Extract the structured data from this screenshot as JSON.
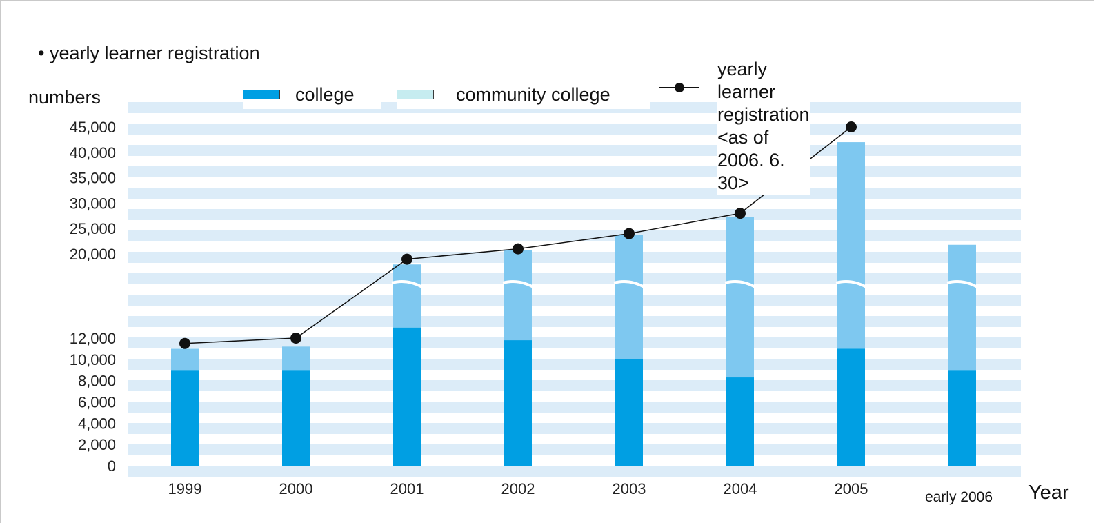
{
  "subtitle": "• yearly learner registration",
  "chart_data": {
    "type": "bar",
    "stacked": true,
    "broken_axis": true,
    "ylabel": "numbers",
    "xlabel": "Year",
    "categories": [
      "1999",
      "2000",
      "2001",
      "2002",
      "2003",
      "2004",
      "2005",
      "early 2006"
    ],
    "y_ticks": [
      "45,000",
      "40,000",
      "35,000",
      "30,000",
      "25,000",
      "20,000",
      "12,000",
      "10,000",
      "8,000",
      "6,000",
      "4,000",
      "2,000",
      "0"
    ],
    "series": [
      {
        "name": "college",
        "kind": "bar",
        "color": "#009fe3",
        "values": [
          9000,
          9000,
          13000,
          11800,
          10000,
          8300,
          11000,
          9000
        ]
      },
      {
        "name": "community college",
        "kind": "bar",
        "color": "#7ec8f0",
        "values": [
          2000,
          2200,
          6000,
          9000,
          13700,
          19000,
          31000,
          12800
        ]
      },
      {
        "name": "yearly learner registration",
        "kind": "line",
        "color": "#111111",
        "values": [
          11500,
          12000,
          19500,
          21000,
          24000,
          28000,
          45000,
          null
        ]
      }
    ],
    "legend": [
      {
        "label": "college",
        "swatch": "#009fe3"
      },
      {
        "label": "community college",
        "swatch": "#c6ecf0"
      },
      {
        "label": "yearly learner registration",
        "label2": "<as of 2006. 6. 30>",
        "swatch": "line"
      }
    ]
  }
}
